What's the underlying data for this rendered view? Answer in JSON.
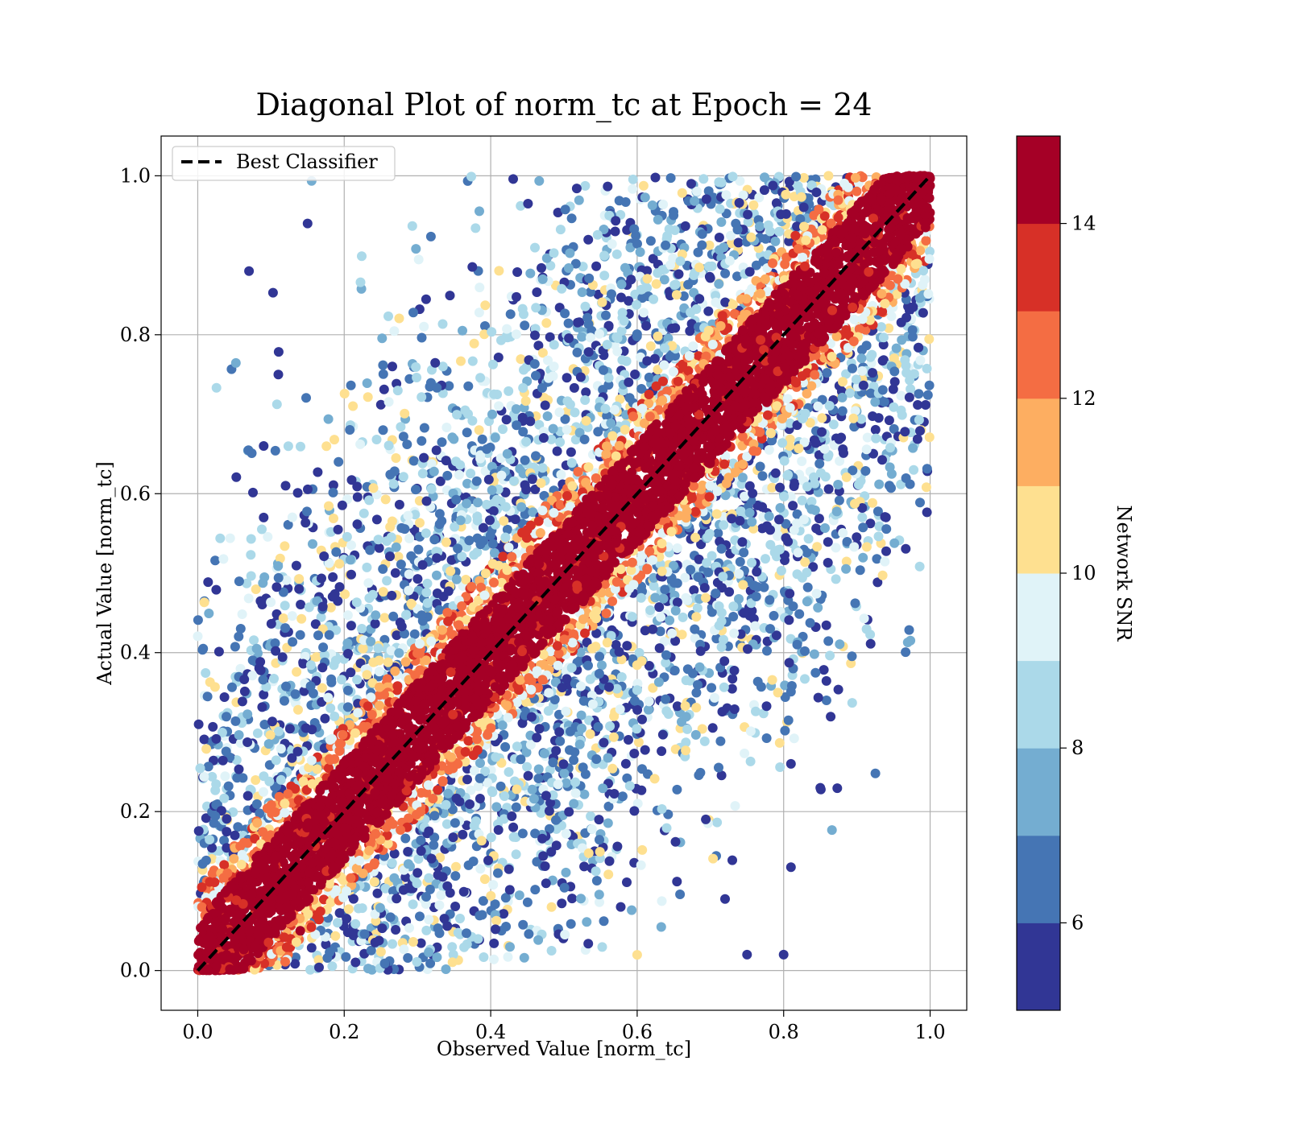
{
  "chart_data": {
    "type": "scatter",
    "title": "Diagonal Plot of norm_tc at Epoch = 24",
    "xlabel": "Observed Value [norm_tc]",
    "ylabel": "Actual Value [norm_tc]",
    "xlim": [
      -0.05,
      1.05
    ],
    "ylim": [
      -0.05,
      1.05
    ],
    "xticks": [
      "0.0",
      "0.2",
      "0.4",
      "0.6",
      "0.8",
      "1.0"
    ],
    "yticks": [
      "0.0",
      "0.2",
      "0.4",
      "0.6",
      "0.8",
      "1.0"
    ],
    "grid": true,
    "legend": {
      "position": "top-left",
      "entries": [
        "Best Classifier"
      ]
    },
    "reference_line": {
      "name": "Best Classifier",
      "x": [
        0,
        1
      ],
      "y": [
        0,
        1
      ],
      "style": "dashed",
      "color": "#000000"
    },
    "colorbar": {
      "label": "Network SNR",
      "range": [
        5,
        15
      ],
      "ticks": [
        "6",
        "8",
        "10",
        "12",
        "14"
      ],
      "tick_values": [
        6,
        8,
        10,
        12,
        14
      ],
      "colors": [
        "#313695",
        "#4575b4",
        "#74add1",
        "#abd9e9",
        "#e0f3f8",
        "#fee090",
        "#fdae61",
        "#f46d43",
        "#d73027",
        "#a50026"
      ]
    },
    "series": [
      {
        "snr_band": "14-15",
        "region": "band |y-x| < 0.06",
        "color": "#a50026"
      },
      {
        "snr_band": "12-14",
        "region": "band edges |y-x| ~ 0.06-0.09",
        "color": "#f46d43"
      },
      {
        "snr_band": "5-11",
        "region": "off-diagonal spread, |y-x| up to ~0.6",
        "color": "#4575b4"
      }
    ],
    "sample_outliers": [
      [
        0.07,
        0.88
      ],
      [
        0.15,
        0.94
      ],
      [
        0.09,
        0.66
      ],
      [
        0.11,
        0.75
      ],
      [
        0.12,
        0.61
      ],
      [
        0.09,
        0.57
      ],
      [
        0.85,
        0.23
      ],
      [
        0.81,
        0.26
      ],
      [
        0.75,
        0.02
      ],
      [
        0.8,
        0.02
      ],
      [
        0.81,
        0.13
      ],
      [
        0.72,
        0.09
      ],
      [
        0.57,
        0.93
      ],
      [
        0.14,
        0.05
      ]
    ]
  }
}
